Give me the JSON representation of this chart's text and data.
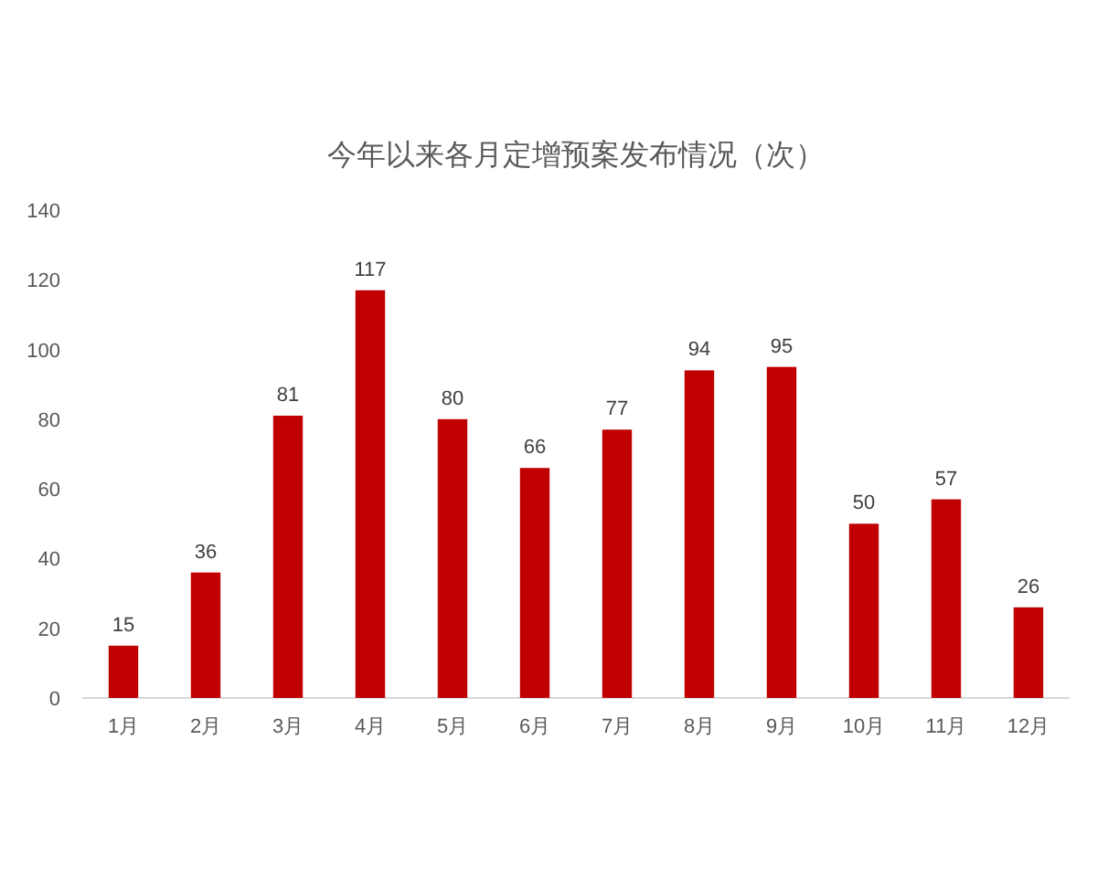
{
  "chart_data": {
    "type": "bar",
    "title": "今年以来各月定增预案发布情况（次）",
    "categories": [
      "1月",
      "2月",
      "3月",
      "4月",
      "5月",
      "6月",
      "7月",
      "8月",
      "9月",
      "10月",
      "11月",
      "12月"
    ],
    "values": [
      15,
      36,
      81,
      117,
      80,
      66,
      77,
      94,
      95,
      50,
      57,
      26
    ],
    "color": "#c00000",
    "ylim": [
      0,
      140
    ],
    "yticks": [
      0,
      20,
      40,
      60,
      80,
      100,
      120,
      140
    ],
    "data_labels": true
  }
}
